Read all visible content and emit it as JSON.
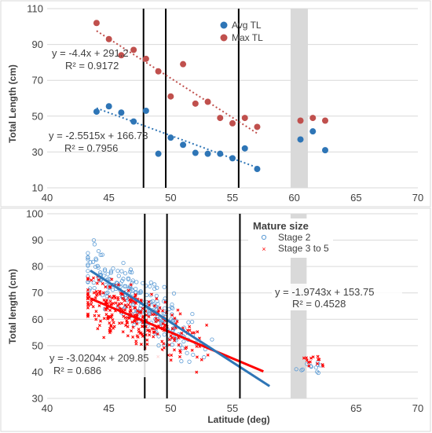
{
  "chart_data": [
    {
      "type": "scatter",
      "xlabel": "",
      "ylabel": "Total Length (cm)",
      "xlim": [
        40,
        70
      ],
      "ylim": [
        10,
        110
      ],
      "x_ticks": [
        "40",
        "45",
        "50",
        "55",
        "60",
        "65",
        "70"
      ],
      "y_ticks": [
        "10",
        "30",
        "50",
        "70",
        "90",
        "110"
      ],
      "grid": "horizontal",
      "legend_position": "top-center",
      "vertical_lines_x": [
        47.8,
        49.6,
        55.5
      ],
      "shaded_x_range": [
        59.7,
        61.1
      ],
      "series": [
        {
          "name": "Avg TL",
          "color": "#2e75b6",
          "points": [
            [
              44,
              52.5
            ],
            [
              45,
              55.5
            ],
            [
              46,
              52
            ],
            [
              47,
              47
            ],
            [
              48,
              53
            ],
            [
              49,
              29
            ],
            [
              50,
              38
            ],
            [
              51,
              34
            ],
            [
              52,
              29.5
            ],
            [
              53,
              29
            ],
            [
              54,
              29
            ],
            [
              55,
              26.5
            ],
            [
              56,
              32
            ],
            [
              57,
              20.5
            ],
            [
              60.5,
              37
            ],
            [
              61.5,
              41.5
            ],
            [
              62.5,
              31
            ]
          ]
        },
        {
          "name": "Max TL",
          "color": "#c0504d",
          "points": [
            [
              44,
              102
            ],
            [
              45,
              93
            ],
            [
              46,
              84
            ],
            [
              47,
              87
            ],
            [
              48,
              82
            ],
            [
              49,
              75
            ],
            [
              50,
              61
            ],
            [
              51,
              79
            ],
            [
              52,
              57
            ],
            [
              53,
              58
            ],
            [
              54,
              49
            ],
            [
              55,
              46
            ],
            [
              56,
              49
            ],
            [
              57,
              44
            ],
            [
              60.5,
              47.5
            ],
            [
              61.5,
              49
            ],
            [
              62.5,
              47.5
            ]
          ]
        }
      ],
      "trendlines": [
        {
          "series": "Max TL",
          "slope": -4.4,
          "intercept": 291.2,
          "x_range": [
            44,
            57
          ],
          "equation": "y = -4.4x + 291.2",
          "r2": "R² = 0.9172"
        },
        {
          "series": "Avg TL",
          "slope": -2.5515,
          "intercept": 166.73,
          "x_range": [
            44,
            57
          ],
          "equation": "y = -2.5515x + 166.73",
          "r2": "R² = 0.7956"
        }
      ]
    },
    {
      "type": "scatter",
      "xlabel": "Latitude (deg)",
      "ylabel": "Total length (cm)",
      "xlim": [
        40,
        70
      ],
      "ylim": [
        30,
        100
      ],
      "x_ticks": [
        "40",
        "45",
        "50",
        "55",
        "65",
        "70"
      ],
      "y_ticks": [
        "30",
        "40",
        "50",
        "60",
        "70",
        "80",
        "90",
        "100"
      ],
      "grid": "horizontal",
      "legend_title": "Mature size",
      "legend_position": "top-center",
      "vertical_lines_x": [
        47.9,
        49.7,
        55.6
      ],
      "shaded_x_range": [
        59.7,
        61.0
      ],
      "series": [
        {
          "name": "Stage 2",
          "color": "#5b9bd5",
          "marker": "open-circle"
        },
        {
          "name": "Stage 3 to 5",
          "color": "#ff0000",
          "marker": "x"
        }
      ],
      "trendlines": [
        {
          "series": "Stage 3 to 5",
          "slope": -1.9743,
          "intercept": 153.75,
          "x_range": [
            43.5,
            57.5
          ],
          "equation": "y = -1.9743x + 153.75",
          "r2": "R² = 0.4528"
        },
        {
          "series": "Stage 2",
          "slope": -3.0204,
          "intercept": 209.85,
          "x_range": [
            43.5,
            58
          ],
          "equation": "y = -3.0204x + 209.85",
          "r2": "R² = 0.686"
        }
      ],
      "sample_clusters": [
        {
          "series": "Stage 2",
          "x_center": 47.5,
          "x_spread": 3.2,
          "y_spread": 8,
          "count": 240,
          "trend": "Stage 2"
        },
        {
          "series": "Stage 3 to 5",
          "x_center": 47,
          "x_spread": 3.0,
          "y_spread": 9,
          "count": 300,
          "trend": "Stage 3 to 5"
        },
        {
          "series": "Stage 2",
          "x_center": 61.5,
          "x_spread": 0.9,
          "y_spread": 3,
          "count": 12,
          "y_level": 42
        },
        {
          "series": "Stage 3 to 5",
          "x_center": 61.6,
          "x_spread": 0.6,
          "y_spread": 3,
          "count": 14,
          "y_level": 44
        }
      ]
    }
  ]
}
